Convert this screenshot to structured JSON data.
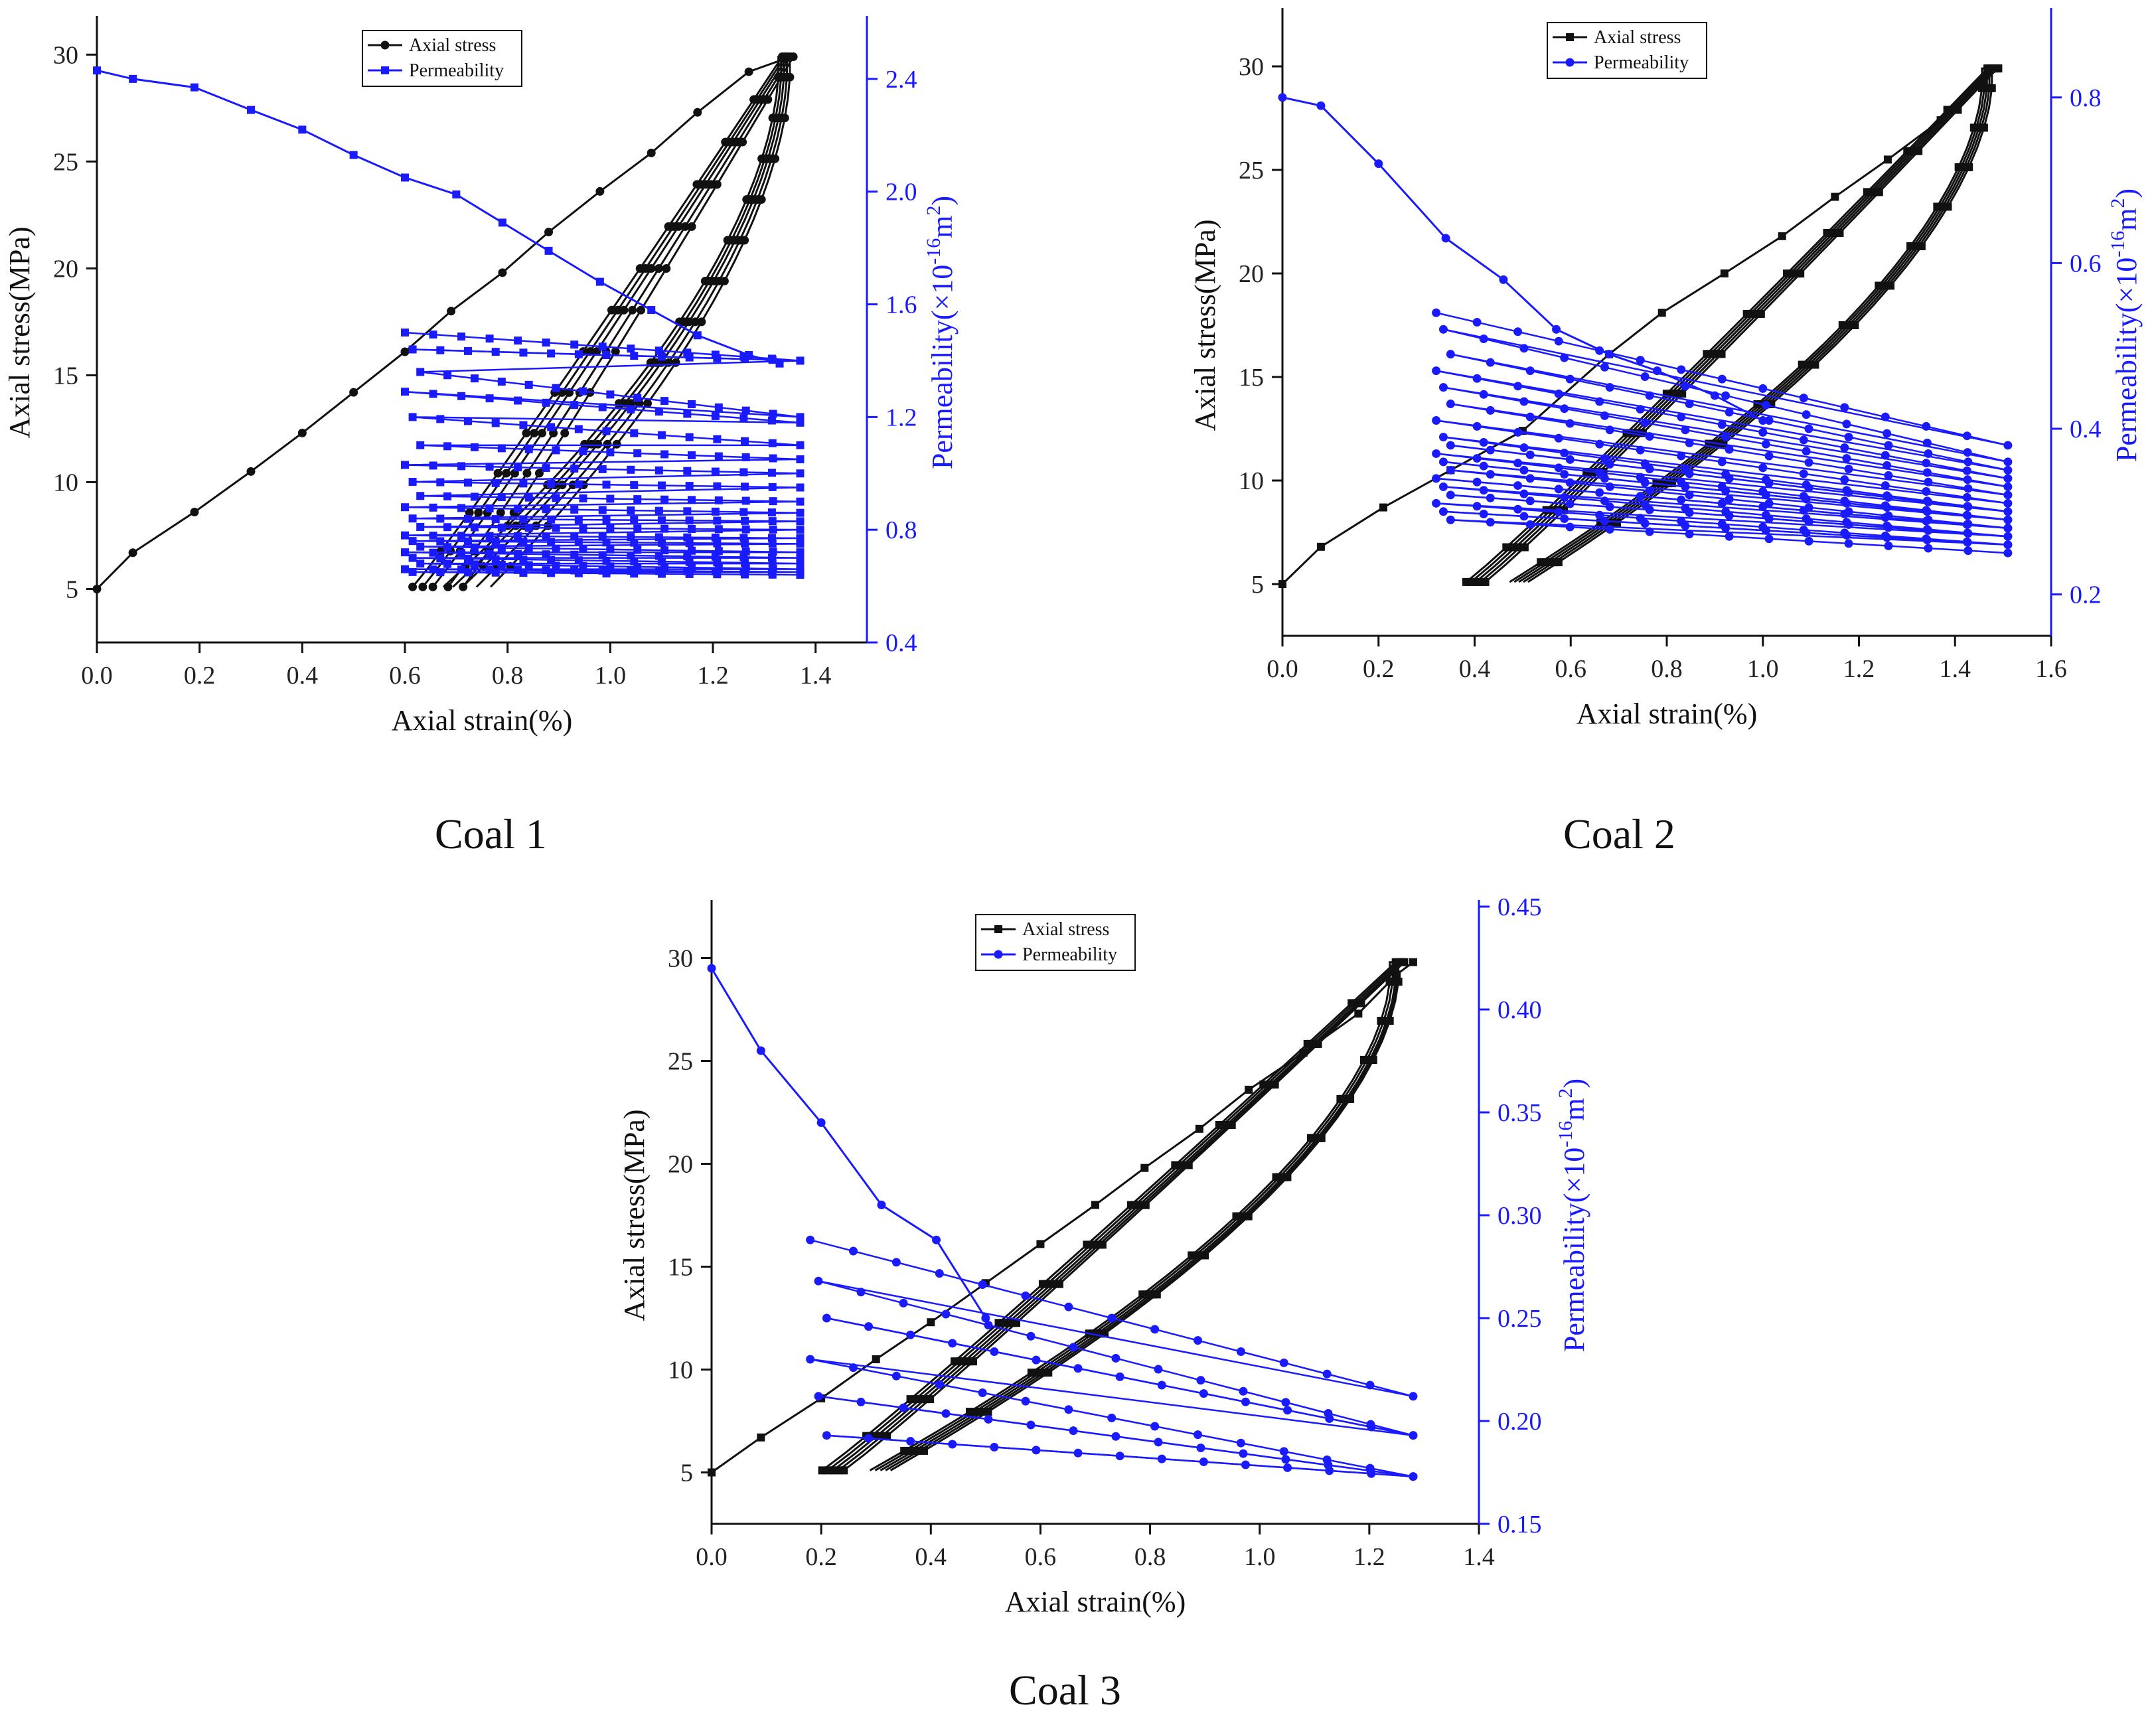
{
  "figure_captions": [
    "Coal 1",
    "Coal 2",
    "Coal 3"
  ],
  "colors": {
    "stress": "#111111",
    "perm": "#1a1aff",
    "axis": "#111111"
  },
  "chart_data": [
    {
      "type": "line",
      "caption": "Coal 1",
      "xlabel": "Axial strain(%)",
      "ylabel": "Axial stress(MPa)",
      "y2label": "Permeability(×10",
      "y2label_exp": "-16",
      "y2label_end": "m",
      "y2label_sq": "2",
      "y2label_close": ")",
      "xlim": [
        0.0,
        1.5
      ],
      "ylim": [
        2.5,
        31.5
      ],
      "y2lim": [
        0.4,
        2.6
      ],
      "xticks": [
        0.0,
        0.2,
        0.4,
        0.6,
        0.8,
        1.0,
        1.2,
        1.4
      ],
      "yticks": [
        5,
        10,
        15,
        20,
        25,
        30
      ],
      "y2ticks": [
        0.4,
        0.8,
        1.2,
        1.6,
        2.0,
        2.4
      ],
      "legend": [
        "Axial stress",
        "Permeability"
      ],
      "legend_position": "top-center",
      "series": [
        {
          "name": "Axial stress",
          "marker": "circle",
          "loops": {
            "start": [
              [
                0.0,
                5.0
              ],
              [
                0.07,
                6.7
              ],
              [
                0.19,
                8.6
              ],
              [
                0.3,
                10.5
              ],
              [
                0.4,
                12.3
              ],
              [
                0.5,
                14.2
              ],
              [
                0.6,
                16.1
              ],
              [
                0.69,
                18.0
              ],
              [
                0.79,
                19.8
              ],
              [
                0.88,
                21.7
              ],
              [
                0.98,
                23.6
              ],
              [
                1.08,
                25.4
              ],
              [
                1.17,
                27.3
              ],
              [
                1.27,
                29.2
              ],
              [
                1.34,
                29.8
              ]
            ],
            "loop_count": 5,
            "strain_min": [
              0.6,
              0.62,
              0.64,
              0.67,
              0.7
            ],
            "strain_max": [
              1.35,
              1.355,
              1.36,
              1.365,
              1.37
            ],
            "stress_min": 5.1,
            "stress_max": 29.9
          }
        },
        {
          "name": "Permeability",
          "marker": "square",
          "initial": [
            [
              0.0,
              2.43
            ],
            [
              0.07,
              2.4
            ],
            [
              0.19,
              2.37
            ],
            [
              0.3,
              2.29
            ],
            [
              0.4,
              2.22
            ],
            [
              0.5,
              2.13
            ],
            [
              0.6,
              2.05
            ],
            [
              0.7,
              1.99
            ],
            [
              0.79,
              1.89
            ],
            [
              0.88,
              1.79
            ],
            [
              0.98,
              1.68
            ],
            [
              1.08,
              1.58
            ],
            [
              1.17,
              1.49
            ],
            [
              1.27,
              1.42
            ],
            [
              1.33,
              1.39
            ]
          ],
          "cycle_levels": [
            1.5,
            1.44,
            1.36,
            1.29,
            1.2,
            1.1,
            1.03,
            0.97,
            0.92,
            0.88,
            0.84,
            0.81,
            0.78,
            0.76,
            0.74,
            0.72,
            0.7,
            0.68,
            0.66,
            0.65
          ],
          "cycle_end_levels": [
            1.4,
            1.4,
            1.2,
            1.18,
            1.1,
            1.05,
            1.0,
            0.95,
            0.9,
            0.86,
            0.83,
            0.8,
            0.77,
            0.75,
            0.72,
            0.7,
            0.68,
            0.66,
            0.65,
            0.64
          ],
          "strain_range": [
            0.6,
            1.37
          ]
        }
      ]
    },
    {
      "type": "line",
      "caption": "Coal 2",
      "xlabel": "Axial strain(%)",
      "ylabel": "Axial stress(MPa)",
      "y2label": "Permeability(×10",
      "y2label_exp": "-16",
      "y2label_end": "m",
      "y2label_sq": "2",
      "y2label_close": ")",
      "xlim": [
        0.0,
        1.6
      ],
      "ylim": [
        2.5,
        32.5
      ],
      "y2lim": [
        0.15,
        0.9
      ],
      "xticks": [
        0.0,
        0.2,
        0.4,
        0.6,
        0.8,
        1.0,
        1.2,
        1.4,
        1.6
      ],
      "yticks": [
        5,
        10,
        15,
        20,
        25,
        30
      ],
      "y2ticks": [
        0.2,
        0.4,
        0.6,
        0.8
      ],
      "legend": [
        "Axial stress",
        "Permeability"
      ],
      "legend_position": "top-center",
      "series": [
        {
          "name": "Axial stress",
          "marker": "square",
          "loops": {
            "start": [
              [
                0.0,
                5.0
              ],
              [
                0.08,
                6.8
              ],
              [
                0.21,
                8.7
              ],
              [
                0.35,
                10.5
              ],
              [
                0.5,
                12.4
              ],
              [
                0.68,
                16.1
              ],
              [
                0.79,
                18.1
              ],
              [
                0.92,
                20.0
              ],
              [
                1.04,
                21.8
              ],
              [
                1.15,
                23.7
              ],
              [
                1.26,
                25.5
              ],
              [
                1.37,
                27.4
              ],
              [
                1.46,
                29.3
              ],
              [
                1.49,
                29.9
              ]
            ],
            "loop_count": 5,
            "strain_min": [
              0.36,
              0.37,
              0.38,
              0.39,
              0.4
            ],
            "strain_max": [
              1.49,
              1.495,
              1.5,
              1.505,
              1.51
            ],
            "stress_min": 5.1,
            "stress_max": 29.9
          }
        },
        {
          "name": "Permeability",
          "marker": "circle",
          "initial": [
            [
              0.0,
              0.8
            ],
            [
              0.08,
              0.79
            ],
            [
              0.2,
              0.72
            ],
            [
              0.34,
              0.63
            ],
            [
              0.46,
              0.58
            ],
            [
              0.57,
              0.52
            ],
            [
              0.68,
              0.49
            ],
            [
              0.78,
              0.47
            ],
            [
              0.9,
              0.44
            ],
            [
              1.0,
              0.41
            ]
          ],
          "cycle_levels": [
            0.54,
            0.52,
            0.49,
            0.47,
            0.45,
            0.43,
            0.41,
            0.39,
            0.38,
            0.37,
            0.36,
            0.35,
            0.34,
            0.33,
            0.32,
            0.31,
            0.3,
            0.29
          ],
          "cycle_end_levels": [
            0.38,
            0.36,
            0.35,
            0.34,
            0.33,
            0.32,
            0.31,
            0.3,
            0.3,
            0.29,
            0.29,
            0.28,
            0.28,
            0.27,
            0.27,
            0.26,
            0.26,
            0.25
          ],
          "strain_range": [
            0.32,
            1.51
          ]
        }
      ]
    },
    {
      "type": "line",
      "caption": "Coal 3",
      "xlabel": "Axial strain(%)",
      "ylabel": "Axial stress(MPa)",
      "y2label": "Permeability(×10",
      "y2label_exp": "-16",
      "y2label_end": "m",
      "y2label_sq": "2",
      "y2label_close": ")",
      "xlim": [
        0.0,
        1.4
      ],
      "ylim": [
        2.5,
        32.5
      ],
      "y2lim": [
        0.15,
        0.45
      ],
      "xticks": [
        0.0,
        0.2,
        0.4,
        0.6,
        0.8,
        1.0,
        1.2,
        1.4
      ],
      "yticks": [
        5,
        10,
        15,
        20,
        25,
        30
      ],
      "y2ticks": [
        0.15,
        0.2,
        0.25,
        0.3,
        0.35,
        0.4,
        0.45
      ],
      "legend": [
        "Axial stress",
        "Permeability"
      ],
      "legend_position": "top-center",
      "series": [
        {
          "name": "Axial stress",
          "marker": "square",
          "loops": {
            "start": [
              [
                0.0,
                5.0
              ],
              [
                0.09,
                6.7
              ],
              [
                0.2,
                8.6
              ],
              [
                0.3,
                10.5
              ],
              [
                0.4,
                12.3
              ],
              [
                0.5,
                14.2
              ],
              [
                0.6,
                16.1
              ],
              [
                0.7,
                18.0
              ],
              [
                0.79,
                19.8
              ],
              [
                0.89,
                21.7
              ],
              [
                0.98,
                23.6
              ],
              [
                1.08,
                25.4
              ],
              [
                1.18,
                27.3
              ],
              [
                1.25,
                29.2
              ],
              [
                1.28,
                29.8
              ]
            ],
            "loop_count": 5,
            "strain_min": [
              0.18,
              0.19,
              0.2,
              0.21,
              0.22
            ],
            "strain_max": [
              1.27,
              1.275,
              1.28,
              1.283,
              1.285
            ],
            "stress_min": 5.1,
            "stress_max": 29.8
          }
        },
        {
          "name": "Permeability",
          "marker": "circle",
          "initial": [
            [
              0.0,
              0.42
            ],
            [
              0.09,
              0.38
            ],
            [
              0.2,
              0.345
            ],
            [
              0.31,
              0.305
            ],
            [
              0.41,
              0.288
            ],
            [
              0.5,
              0.25
            ]
          ],
          "cycle_levels": [
            0.288,
            0.268,
            0.25,
            0.23,
            0.212,
            0.193
          ],
          "cycle_end_levels": [
            0.212,
            0.193,
            0.193,
            0.173,
            0.173,
            0.173
          ],
          "strain_range": [
            0.18,
            1.28
          ]
        }
      ]
    }
  ]
}
